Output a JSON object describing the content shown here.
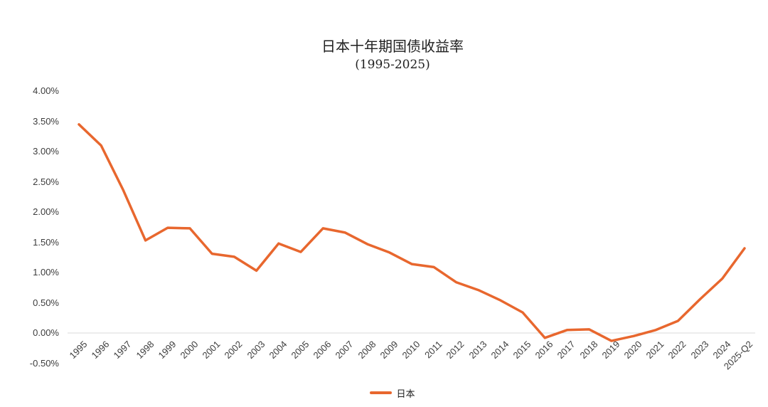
{
  "page": {
    "background": "#FFFFFF"
  },
  "chart_data": {
    "type": "line",
    "title": "日本十年期国债收益率",
    "subtitle": "(1995-2025)",
    "categories": [
      "1995",
      "1996",
      "1997",
      "1998",
      "1999",
      "2000",
      "2001",
      "2002",
      "2003",
      "2004",
      "2005",
      "2006",
      "2007",
      "2008",
      "2009",
      "2010",
      "2011",
      "2012",
      "2013",
      "2014",
      "2015",
      "2016",
      "2017",
      "2018",
      "2019",
      "2020",
      "2021",
      "2022",
      "2023",
      "2024",
      "2025-Q2"
    ],
    "series": [
      {
        "name": "日本",
        "color": "#E8672E",
        "values": [
          3.45,
          3.1,
          2.36,
          1.53,
          1.74,
          1.73,
          1.31,
          1.26,
          1.03,
          1.48,
          1.34,
          1.73,
          1.66,
          1.47,
          1.33,
          1.14,
          1.09,
          0.84,
          0.71,
          0.54,
          0.34,
          -0.08,
          0.05,
          0.06,
          -0.13,
          -0.05,
          0.05,
          0.2,
          0.56,
          0.9,
          1.4
        ]
      }
    ],
    "ylabel": "",
    "xlabel": "",
    "ylim": [
      -0.5,
      4.0
    ],
    "yticks": [
      "4.00%",
      "3.50%",
      "3.00%",
      "2.50%",
      "2.00%",
      "1.50%",
      "1.00%",
      "0.50%",
      "0.00%",
      "-0.50%"
    ],
    "grid": "zero-line-only",
    "zero_line_color": "#D9D9D9",
    "tick_text_color": "#3C3C3C",
    "legend_position": "bottom"
  }
}
